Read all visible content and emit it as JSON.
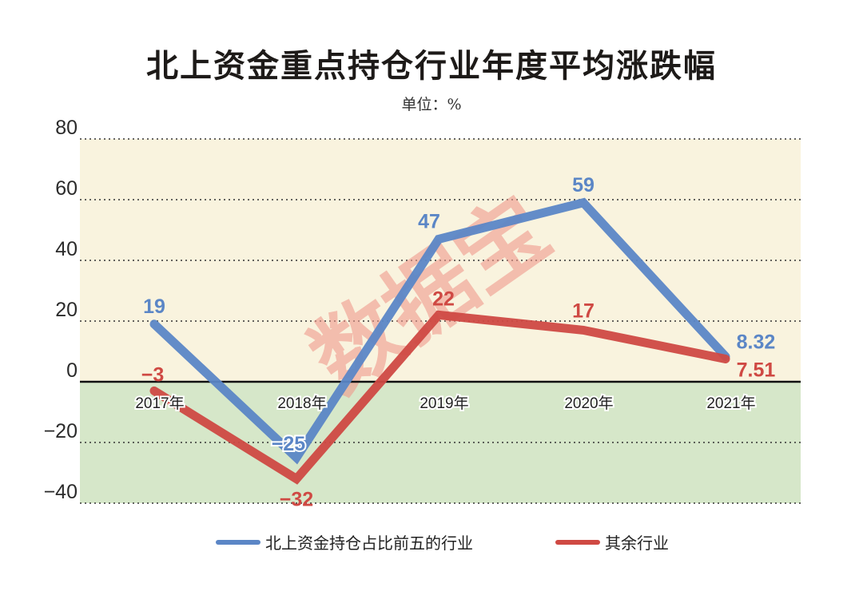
{
  "title": "北上资金重点持仓行业年度平均涨跌幅",
  "unit": "单位：%",
  "watermark": "数据宝",
  "colors": {
    "positive_bg": "#f9f3de",
    "negative_bg": "#d6e7c9",
    "blue": "#5b86c6",
    "red": "#cf4943",
    "watermark": "#ef9a8c"
  },
  "legend": [
    {
      "label": "北上资金持仓占比前五的行业",
      "color": "#5b86c6"
    },
    {
      "label": "其余行业",
      "color": "#cf4943"
    }
  ],
  "chart_data": {
    "type": "line",
    "title": "北上资金重点持仓行业年度平均涨跌幅",
    "subtitle": "单位：%",
    "xlabel": "",
    "ylabel": "%",
    "categories": [
      "2017年",
      "2018年",
      "2019年",
      "2020年",
      "2021年"
    ],
    "series": [
      {
        "name": "北上资金持仓占比前五的行业",
        "values": [
          19,
          -25,
          47,
          59,
          8.32
        ],
        "labels": [
          "19",
          "−25",
          "47",
          "59",
          "8.32"
        ]
      },
      {
        "name": "其余行业",
        "values": [
          -3,
          -32,
          22,
          17,
          7.51
        ],
        "labels": [
          "−3",
          "−32",
          "22",
          "17",
          "7.51"
        ]
      }
    ],
    "yticks": [
      80,
      60,
      40,
      20,
      0,
      -20,
      -40
    ],
    "ytick_labels": [
      "80",
      "60",
      "40",
      "20",
      "0",
      "−20",
      "−40"
    ],
    "ylim": [
      -40,
      80
    ],
    "grid": "dotted horizontal",
    "legend_position": "bottom"
  }
}
